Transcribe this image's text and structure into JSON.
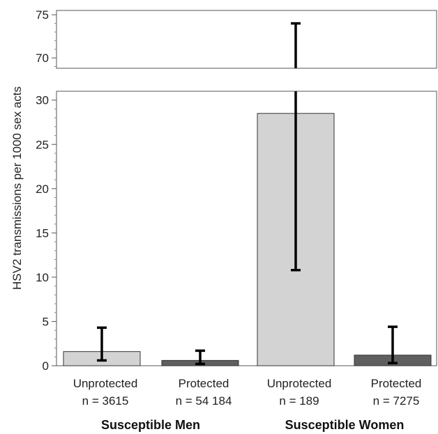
{
  "chart_data": {
    "type": "bar",
    "ylabel": "HSV2 transmissions per 1000 sex acts",
    "broken_axis": true,
    "ylim_lower": [
      0,
      31
    ],
    "ylim_upper": [
      68.8,
      75.5
    ],
    "yticks_lower": [
      "0",
      "5",
      "10",
      "15",
      "20",
      "25",
      "30"
    ],
    "yticks_upper": [
      "70",
      "75"
    ],
    "categories": [
      {
        "label": "Unprotected",
        "n": "n = 3615",
        "group": "Susceptible Men",
        "value": 1.6,
        "err_low": 0.6,
        "err_high": 4.3,
        "color": "#d3d3d3"
      },
      {
        "label": "Protected",
        "n": "n = 54 184",
        "group": "Susceptible Men",
        "value": 0.6,
        "err_low": 0.2,
        "err_high": 1.7,
        "color": "#5f5f5f"
      },
      {
        "label": "Unprotected",
        "n": "n = 189",
        "group": "Susceptible Women",
        "value": 28.5,
        "err_low": 10.8,
        "err_high": 74.0,
        "color": "#d3d3d3"
      },
      {
        "label": "Protected",
        "n": "n = 7275",
        "group": "Susceptible Women",
        "value": 1.2,
        "err_low": 0.3,
        "err_high": 4.4,
        "color": "#5f5f5f"
      }
    ],
    "groups": [
      "Susceptible Men",
      "Susceptible Women"
    ],
    "grid": false,
    "legend": "none"
  }
}
